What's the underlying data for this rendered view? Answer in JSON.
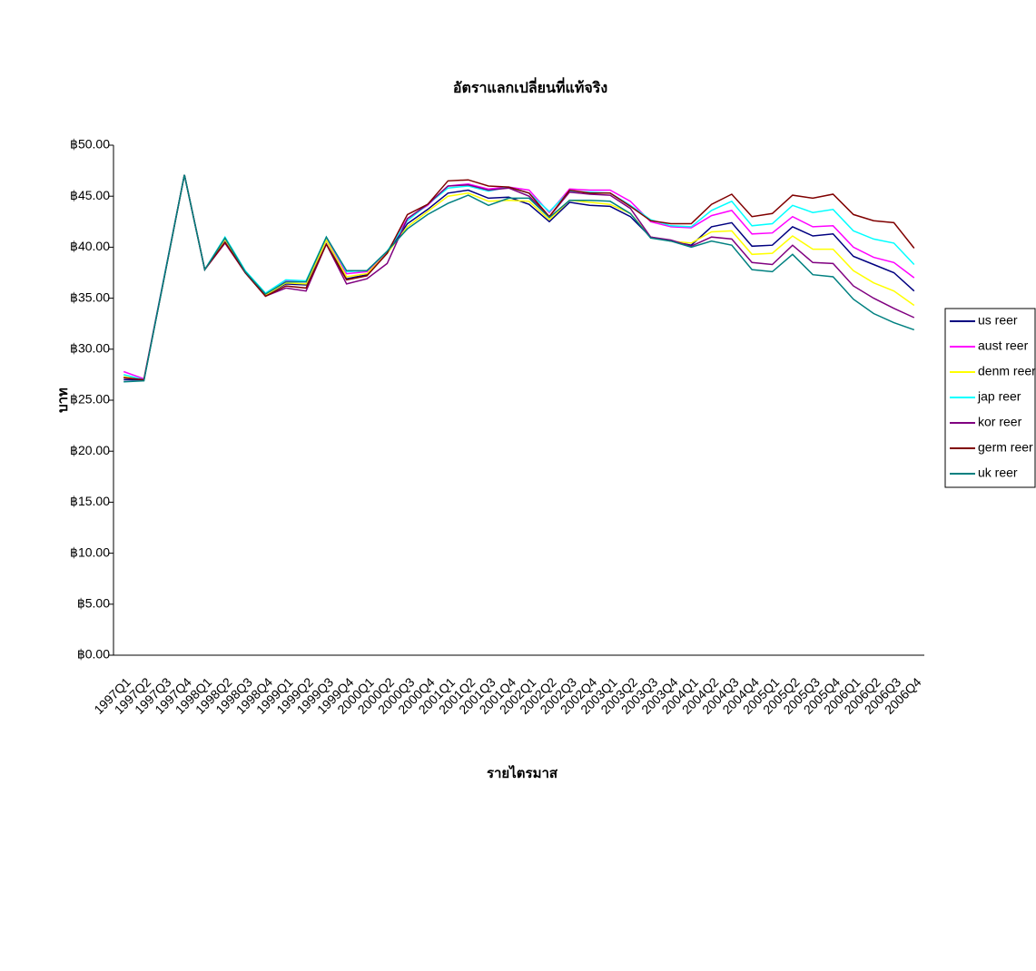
{
  "chart_data": {
    "type": "line",
    "title": "อัตราแลกเปลี่ยนที่แท้จริง",
    "x_label": "รายไตรมาส",
    "y_label": "บาท",
    "categories": [
      "1997Q1",
      "1997Q2",
      "1997Q3",
      "1997Q4",
      "1998Q1",
      "1998Q2",
      "1998Q3",
      "1998Q4",
      "1999Q1",
      "1999Q2",
      "1999Q3",
      "1999Q4",
      "2000Q1",
      "2000Q2",
      "2000Q3",
      "2000Q4",
      "2001Q1",
      "2001Q2",
      "2001Q3",
      "2001Q4",
      "2002Q1",
      "2002Q2",
      "2002Q3",
      "2002Q4",
      "2003Q1",
      "2003Q2",
      "2003Q3",
      "2003Q4",
      "2004Q1",
      "2004Q2",
      "2004Q3",
      "2004Q4",
      "2005Q1",
      "2005Q2",
      "2005Q3",
      "2005Q4",
      "2006Q1",
      "2006Q2",
      "2006Q3",
      "2006Q4"
    ],
    "ylim": [
      0,
      50
    ],
    "yticks": [
      {
        "value": 0,
        "label": "฿0.00"
      },
      {
        "value": 5,
        "label": "฿5.00"
      },
      {
        "value": 10,
        "label": "฿10.00"
      },
      {
        "value": 15,
        "label": "฿15.00"
      },
      {
        "value": 20,
        "label": "฿20.00"
      },
      {
        "value": 25,
        "label": "฿25.00"
      },
      {
        "value": 30,
        "label": "฿30.00"
      },
      {
        "value": 35,
        "label": "฿35.00"
      },
      {
        "value": 40,
        "label": "฿40.00"
      },
      {
        "value": 45,
        "label": "฿45.00"
      },
      {
        "value": 50,
        "label": "฿50.00"
      }
    ],
    "grid": false,
    "legend": "right",
    "series": [
      {
        "name": "us reer",
        "color": "#000080",
        "values": [
          27.0,
          27.0,
          37.0,
          47.1,
          37.8,
          40.8,
          37.6,
          35.3,
          36.4,
          36.3,
          40.7,
          36.9,
          37.3,
          39.4,
          42.3,
          43.7,
          45.3,
          45.6,
          44.8,
          44.9,
          44.2,
          42.5,
          44.4,
          44.1,
          44.0,
          43.0,
          41.0,
          40.6,
          40.2,
          42.0,
          42.4,
          40.1,
          40.2,
          42.0,
          41.1,
          41.3,
          39.1,
          38.3,
          37.5,
          35.7
        ]
      },
      {
        "name": "aust reer",
        "color": "#ff00ff",
        "values": [
          27.8,
          27.1,
          37.1,
          47.1,
          37.8,
          40.9,
          37.6,
          35.4,
          36.7,
          36.6,
          40.9,
          37.4,
          37.6,
          39.5,
          42.8,
          44.1,
          46.0,
          46.2,
          45.7,
          45.9,
          45.6,
          43.4,
          45.7,
          45.6,
          45.6,
          44.5,
          42.5,
          42.0,
          41.9,
          43.1,
          43.6,
          41.3,
          41.4,
          43.0,
          42.0,
          42.1,
          40.0,
          39.0,
          38.5,
          37.0
        ]
      },
      {
        "name": "denm reer",
        "color": "#ffff00",
        "values": [
          27.3,
          27.0,
          37.0,
          47.1,
          37.8,
          40.8,
          37.6,
          35.3,
          36.5,
          36.4,
          40.7,
          37.1,
          37.4,
          39.4,
          42.0,
          43.5,
          45.0,
          45.3,
          44.5,
          44.6,
          44.5,
          42.7,
          44.6,
          44.4,
          44.2,
          43.3,
          41.0,
          40.6,
          40.4,
          41.5,
          41.6,
          39.3,
          39.4,
          41.1,
          39.8,
          39.8,
          37.7,
          36.5,
          35.7,
          34.3
        ]
      },
      {
        "name": "jap reer",
        "color": "#00ffff",
        "values": [
          27.5,
          27.0,
          37.1,
          47.1,
          37.8,
          41.0,
          37.7,
          35.5,
          36.8,
          36.7,
          41.0,
          37.6,
          37.7,
          39.6,
          42.6,
          44.2,
          45.8,
          46.0,
          45.5,
          45.9,
          45.3,
          43.5,
          45.5,
          45.4,
          45.3,
          44.1,
          42.7,
          42.1,
          42.0,
          43.6,
          44.5,
          42.1,
          42.3,
          44.1,
          43.4,
          43.7,
          41.6,
          40.8,
          40.4,
          38.3
        ]
      },
      {
        "name": "kor reer",
        "color": "#800080",
        "values": [
          27.2,
          27.0,
          37.0,
          47.1,
          37.8,
          40.4,
          37.5,
          35.2,
          36.0,
          35.7,
          40.3,
          36.4,
          36.9,
          38.4,
          42.8,
          44.2,
          46.0,
          46.1,
          45.6,
          45.8,
          45.0,
          43.0,
          45.4,
          45.2,
          45.1,
          43.8,
          41.0,
          40.7,
          40.1,
          41.0,
          40.8,
          38.5,
          38.3,
          40.2,
          38.5,
          38.4,
          36.2,
          35.0,
          34.0,
          33.1
        ]
      },
      {
        "name": "germ reer",
        "color": "#800000",
        "values": [
          27.2,
          27.0,
          37.0,
          47.1,
          37.8,
          40.5,
          37.5,
          35.2,
          36.2,
          36.0,
          40.3,
          36.8,
          37.2,
          39.4,
          43.2,
          44.2,
          46.5,
          46.6,
          46.0,
          45.9,
          45.3,
          43.0,
          45.6,
          45.3,
          45.3,
          44.0,
          42.6,
          42.3,
          42.3,
          44.2,
          45.2,
          43.0,
          43.3,
          45.1,
          44.8,
          45.2,
          43.2,
          42.6,
          42.4,
          39.9
        ]
      },
      {
        "name": "uk reer",
        "color": "#008080",
        "values": [
          26.8,
          26.9,
          37.0,
          47.1,
          37.8,
          40.9,
          37.6,
          35.4,
          36.6,
          36.6,
          41.0,
          37.7,
          37.7,
          39.6,
          41.8,
          43.2,
          44.3,
          45.1,
          44.1,
          44.8,
          44.8,
          42.9,
          44.6,
          44.6,
          44.5,
          43.3,
          40.9,
          40.6,
          40.0,
          40.6,
          40.2,
          37.8,
          37.6,
          39.3,
          37.3,
          37.1,
          34.9,
          33.5,
          32.6,
          31.9
        ]
      }
    ]
  }
}
